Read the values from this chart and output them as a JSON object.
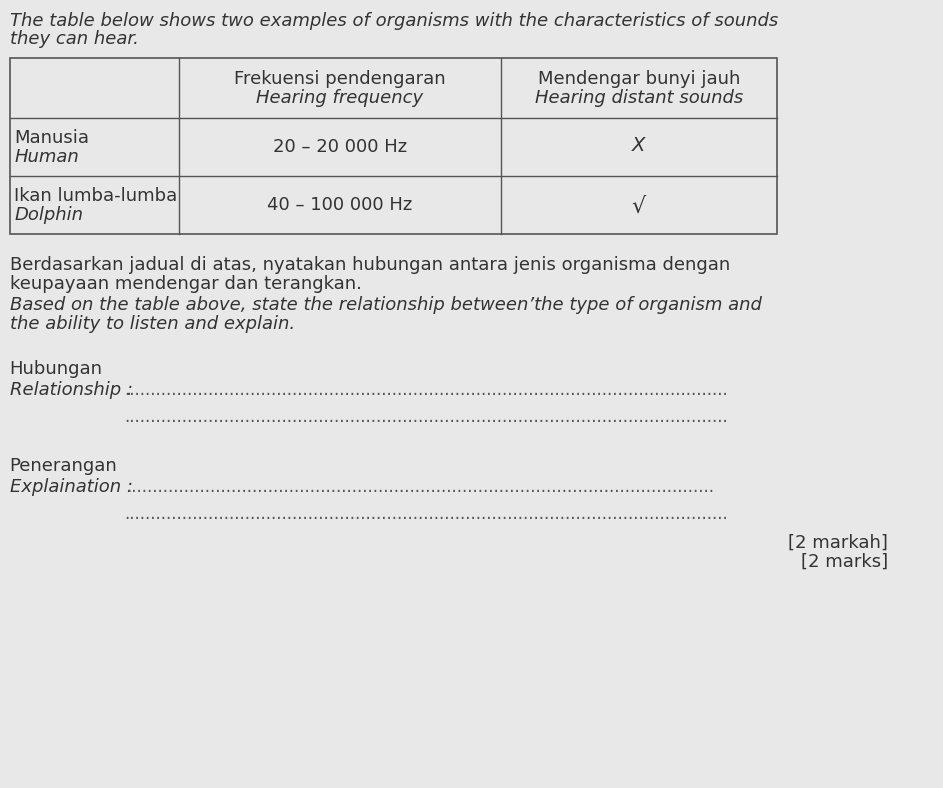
{
  "bg_color": "#e8e8e8",
  "title_line1": "The table below shows two examples of organisms with the characteristics of sounds",
  "title_line2": "they can hear.",
  "col_header1_line1": "Frekuensi pendengaran",
  "col_header1_line2": "Hearing frequency",
  "col_header2_line1": "Mendengar bunyi jauh",
  "col_header2_line2": "Hearing distant sounds",
  "row1_col0_line1": "Manusia",
  "row1_col0_line2": "Human",
  "row1_col1": "20 – 20 000 Hz",
  "row1_col2": "X",
  "row2_col0_line1": "Ikan lumba-lumba",
  "row2_col0_line2": "Dolphin",
  "row2_col1": "40 – 100 000 Hz",
  "row2_col2": "√",
  "para1": "Berdasarkan jadual di atas, nyatakan hubungan antara jenis organisma dengan",
  "para2": "keupayaan mendengar dan terangkan.",
  "para3": "Based on the table above, state the relationship between’the type of organism and",
  "para4": "the ability to listen and explain.",
  "hubungan1": "Hubungan",
  "hubungan2": "Relationship :",
  "penerangan1": "Penerangan",
  "penerangan2": "Explaination :",
  "marks1": "[2 markah]",
  "marks2": "[2 marks]",
  "font_size": 13
}
